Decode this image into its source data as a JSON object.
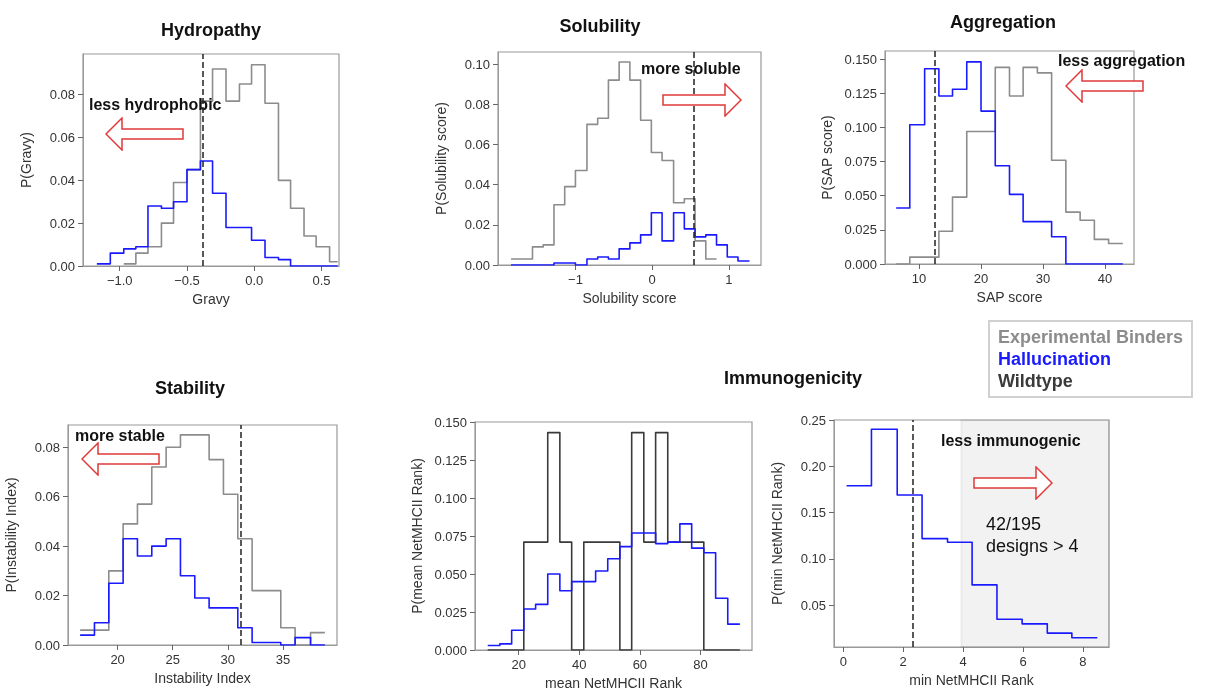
{
  "chart_data": [
    {
      "type": "step",
      "title": "Hydropathy",
      "xlabel": "Gravy",
      "ylabel": "P(Gravy)",
      "xlim": [
        -1.273,
        0.63
      ],
      "ylim": [
        0,
        0.099
      ],
      "xticks": [
        {
          "value": -1,
          "label": "−1.0"
        },
        {
          "value": -0.5,
          "label": "−0.5"
        },
        {
          "value": 0,
          "label": "0.0"
        },
        0.5
      ],
      "yticks": [
        {
          "value": 0,
          "label": "0.00"
        },
        0.02,
        0.04,
        0.06,
        0.08
      ],
      "grid": false,
      "series": [
        {
          "color": "#8c8c8c",
          "x": [
            -0.97,
            -0.88,
            -0.79,
            -0.69,
            -0.6,
            -0.5,
            -0.4,
            -0.31,
            -0.21,
            -0.11,
            -0.02,
            0.08,
            0.18,
            0.27,
            0.37,
            0.46,
            0.56,
            0.62
          ],
          "values": [
            0.001,
            0.006,
            0.009,
            0.02,
            0.039,
            0.045,
            0.077,
            0.092,
            0.077,
            0.085,
            0.094,
            0.076,
            0.04,
            0.027,
            0.014,
            0.009,
            0.002,
            0.002
          ]
        },
        {
          "color": "#1a1aff",
          "x": [
            -1.17,
            -1.07,
            -0.97,
            -0.88,
            -0.79,
            -0.69,
            -0.6,
            -0.5,
            -0.4,
            -0.31,
            -0.21,
            -0.11,
            -0.02,
            0.08,
            0.18,
            0.27,
            0.37,
            0.46,
            0.56,
            0.62
          ],
          "values": [
            0.001,
            0.006,
            0.008,
            0.009,
            0.028,
            0.027,
            0.03,
            0.045,
            0.049,
            0.034,
            0.018,
            0.018,
            0.012,
            0.004,
            0.003,
            0,
            0,
            0,
            0,
            0
          ]
        }
      ],
      "ref_lines": [
        {
          "axis": "x",
          "value": -0.38
        }
      ],
      "annotations": [
        "less hydrophobic"
      ]
    },
    {
      "type": "step",
      "title": "Solubility",
      "xlabel": "Solubility score",
      "ylabel": "P(Solubility score)",
      "xlim": [
        -2.01,
        1.42
      ],
      "ylim": [
        0,
        0.106
      ],
      "xticks": [
        {
          "value": -1,
          "label": "−1"
        },
        0,
        1
      ],
      "yticks": [
        {
          "value": 0,
          "label": "0.00"
        },
        0.02,
        0.04,
        0.06,
        0.08,
        {
          "value": 0.1,
          "label": "0.10"
        }
      ],
      "grid": false,
      "series": [
        {
          "color": "#8c8c8c",
          "x": [
            -1.84,
            -1.7,
            -1.56,
            -1.42,
            -1.28,
            -1.14,
            -1.0,
            -0.85,
            -0.71,
            -0.57,
            -0.43,
            -0.29,
            -0.15,
            -0.01,
            0.13,
            0.28,
            0.42,
            0.56,
            0.7,
            0.84
          ],
          "values": [
            0.003,
            0.003,
            0.009,
            0.01,
            0.03,
            0.039,
            0.047,
            0.07,
            0.073,
            0.092,
            0.101,
            0.092,
            0.072,
            0.056,
            0.052,
            0.031,
            0.033,
            0.012,
            0.003,
            0.003
          ]
        },
        {
          "color": "#1a1aff",
          "x": [
            -1.84,
            -1.7,
            -1.56,
            -1.42,
            -1.28,
            -1.14,
            -1.0,
            -0.85,
            -0.71,
            -0.57,
            -0.43,
            -0.29,
            -0.15,
            -0.01,
            0.13,
            0.28,
            0.42,
            0.56,
            0.7,
            0.84,
            0.98,
            1.12,
            1.27
          ],
          "values": [
            0,
            0,
            0,
            0,
            0.001,
            0.001,
            0,
            0.003,
            0.004,
            0.003,
            0.008,
            0.011,
            0.015,
            0.026,
            0.012,
            0.026,
            0.018,
            0.014,
            0.015,
            0.01,
            0.004,
            0.002,
            0.002
          ]
        }
      ],
      "ref_lines": [
        {
          "axis": "x",
          "value": 0.54
        }
      ],
      "annotations": [
        "more soluble"
      ]
    },
    {
      "type": "step",
      "title": "Aggregation",
      "xlabel": "SAP score",
      "ylabel": "P(SAP score)",
      "xlim": [
        4.5,
        44.7
      ],
      "ylim": [
        0,
        0.156
      ],
      "xticks": [
        10,
        20,
        30,
        40
      ],
      "yticks": [
        {
          "value": 0,
          "label": "0.000"
        },
        0.025,
        {
          "value": 0.05,
          "label": "0.050"
        },
        0.075,
        {
          "value": 0.1,
          "label": "0.100"
        },
        0.125,
        {
          "value": 0.15,
          "label": "0.150"
        }
      ],
      "grid": false,
      "series": [
        {
          "name": "Experimental Binders",
          "color": "#8c8c8c",
          "x": [
            6.3,
            8.5,
            10.9,
            13.2,
            15.4,
            17.7,
            20.0,
            22.3,
            24.6,
            26.8,
            29.1,
            31.4,
            33.7,
            36.0,
            38.3,
            40.6,
            42.9
          ],
          "values": [
            0,
            0.005,
            0.005,
            0.024,
            0.049,
            0.097,
            0.097,
            0.144,
            0.123,
            0.144,
            0.14,
            0.076,
            0.038,
            0.032,
            0.018,
            0.015,
            0.015
          ]
        },
        {
          "name": "Hallucination",
          "color": "#1a1aff",
          "x": [
            6.3,
            8.5,
            10.9,
            13.2,
            15.4,
            17.7,
            20.0,
            22.3,
            24.6,
            26.8,
            29.1,
            31.4,
            33.7,
            36.0,
            38.3,
            40.6,
            42.9
          ],
          "values": [
            0.041,
            0.102,
            0.143,
            0.123,
            0.128,
            0.148,
            0.112,
            0.072,
            0.051,
            0.031,
            0.031,
            0.02,
            0,
            0,
            0,
            0,
            0
          ]
        }
      ],
      "ref_lines": [
        {
          "axis": "x",
          "value": 12.5
        }
      ],
      "annotations": [
        "less aggregation"
      ]
    },
    {
      "type": "step",
      "title": "Stability",
      "xlabel": "Instability Index",
      "ylabel": "P(Instability Index)",
      "xlim": [
        15.5,
        39.9
      ],
      "ylim": [
        0,
        0.089
      ],
      "xticks": [
        20,
        25,
        30,
        35
      ],
      "yticks": [
        {
          "value": 0,
          "label": "0.00"
        },
        0.02,
        0.04,
        0.06,
        0.08
      ],
      "grid": false,
      "series": [
        {
          "color": "#8c8c8c",
          "x": [
            16.6,
            17.9,
            19.2,
            20.5,
            21.8,
            23.1,
            24.4,
            25.7,
            27.0,
            28.3,
            29.6,
            30.9,
            32.2,
            33.5,
            34.8,
            36.1,
            37.5,
            38.8
          ],
          "values": [
            0.006,
            0.006,
            0.03,
            0.049,
            0.057,
            0.072,
            0.08,
            0.085,
            0.085,
            0.075,
            0.061,
            0.043,
            0.022,
            0.022,
            0.007,
            0,
            0.005,
            0.005
          ]
        },
        {
          "color": "#1a1aff",
          "x": [
            16.6,
            17.9,
            19.2,
            20.5,
            21.8,
            23.1,
            24.4,
            25.7,
            27.0,
            28.3,
            29.6,
            30.9,
            32.2,
            33.5,
            34.8,
            36.1,
            37.5,
            38.8
          ],
          "values": [
            0.004,
            0.009,
            0.025,
            0.043,
            0.036,
            0.04,
            0.043,
            0.028,
            0.019,
            0.015,
            0.015,
            0.007,
            0.001,
            0.001,
            0,
            0.003,
            0,
            0
          ]
        }
      ],
      "ref_lines": [
        {
          "axis": "x",
          "value": 31.2
        }
      ],
      "annotations": [
        "more stable"
      ]
    },
    {
      "type": "step",
      "title": "Immunogenicity",
      "xlabel": "mean NetMHCII Rank",
      "ylabel": "P(mean NetMHCII Rank)",
      "xlim": [
        5.6,
        97
      ],
      "ylim": [
        0,
        0.15
      ],
      "xticks": [
        20,
        40,
        60,
        80
      ],
      "yticks": [
        {
          "value": 0,
          "label": "0.000"
        },
        0.025,
        {
          "value": 0.05,
          "label": "0.050"
        },
        0.075,
        {
          "value": 0.1,
          "label": "0.100"
        },
        0.125,
        {
          "value": 0.15,
          "label": "0.150"
        }
      ],
      "grid": false,
      "series": [
        {
          "name": "Wildtype",
          "color": "#3a3a3a",
          "x": [
            9.8,
            13.8,
            17.7,
            21.7,
            25.6,
            29.6,
            33.6,
            37.5,
            41.5,
            45.4,
            49.4,
            53.4,
            57.3,
            61.3,
            65.2,
            69.2,
            73.2,
            77.1,
            81.1,
            85.0,
            89.0,
            93.0
          ],
          "values": [
            0,
            0,
            0,
            0.071,
            0.071,
            0.143,
            0.071,
            0,
            0.071,
            0.071,
            0.071,
            0,
            0.143,
            0.071,
            0.143,
            0.071,
            0.071,
            0.071,
            0,
            0,
            0,
            0
          ]
        },
        {
          "color": "#1a1aff",
          "x": [
            9.8,
            13.8,
            17.7,
            21.7,
            25.6,
            29.6,
            33.6,
            37.5,
            41.5,
            45.4,
            49.4,
            53.4,
            57.3,
            61.3,
            65.2,
            69.2,
            73.2,
            77.1,
            81.1,
            85.0,
            89.0,
            93.0
          ],
          "values": [
            0.003,
            0.004,
            0.013,
            0.027,
            0.03,
            0.05,
            0.039,
            0.045,
            0.045,
            0.052,
            0.06,
            0.068,
            0.077,
            0.077,
            0.07,
            0.071,
            0.083,
            0.067,
            0.064,
            0.034,
            0.017,
            0.017
          ]
        }
      ]
    },
    {
      "type": "step",
      "xlabel": "min NetMHCII Rank",
      "ylabel": "P(min NetMHCII Rank)",
      "xlim": [
        -0.31,
        8.87
      ],
      "ylim": [
        0.005,
        0.25
      ],
      "xticks": [
        0,
        2,
        4,
        6,
        8
      ],
      "yticks": [
        0.05,
        {
          "value": 0.1,
          "label": "0.10"
        },
        0.15,
        {
          "value": 0.2,
          "label": "0.20"
        },
        0.25
      ],
      "grid": false,
      "series": [
        {
          "color": "#1a1aff",
          "x": [
            0.11,
            0.94,
            1.8,
            2.63,
            3.48,
            4.3,
            5.13,
            5.97,
            6.81,
            7.63,
            8.48
          ],
          "values": [
            0.179,
            0.24,
            0.169,
            0.122,
            0.118,
            0.072,
            0.035,
            0.03,
            0.02,
            0.015,
            0.015
          ]
        }
      ],
      "ref_lines": [
        {
          "axis": "x",
          "value": 2.33
        }
      ],
      "bands": [
        {
          "axis": "x",
          "from": 3.94,
          "to": 8.87,
          "color": "#555555"
        }
      ],
      "annotations": [
        "less immunogenic",
        "42/195\ndesigns > 4"
      ]
    }
  ]
}
